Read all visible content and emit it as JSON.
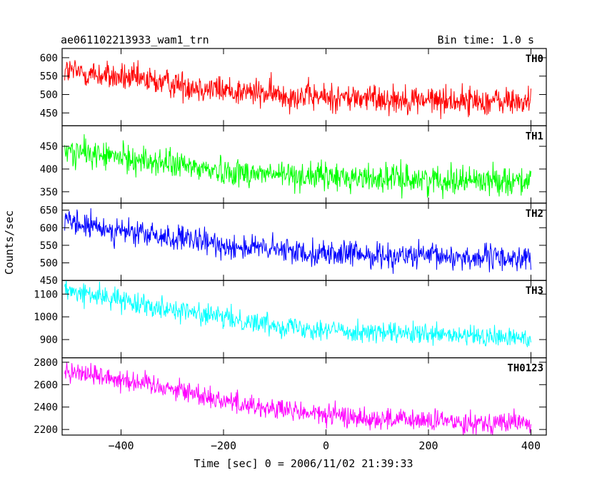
{
  "chart_data": {
    "type": "line",
    "title": "ae061102213933_wam1_trn",
    "subtitle": "Bin time: 1.0 s",
    "xlabel": "Time [sec] 0 = 2006/11/02 21:39:33",
    "ylabel": "Counts/sec",
    "xlim": [
      -515,
      430
    ],
    "x_range": [
      -510,
      400
    ],
    "xticks": [
      -400,
      -200,
      0,
      200,
      400
    ],
    "grid": false,
    "panels": [
      {
        "name": "TH0",
        "color": "#ff0000",
        "ylim": [
          415,
          625
        ],
        "yticks": [
          450,
          500,
          550,
          600
        ],
        "trend": [
          [
            -510,
            565
          ],
          [
            -400,
            545
          ],
          [
            -300,
            530
          ],
          [
            -200,
            512
          ],
          [
            -100,
            500
          ],
          [
            0,
            492
          ],
          [
            100,
            490
          ],
          [
            200,
            485
          ],
          [
            300,
            482
          ],
          [
            400,
            480
          ]
        ],
        "noise": 28
      },
      {
        "name": "TH1",
        "color": "#00ff00",
        "ylim": [
          325,
          495
        ],
        "yticks": [
          350,
          400,
          450
        ],
        "trend": [
          [
            -510,
            440
          ],
          [
            -400,
            425
          ],
          [
            -300,
            410
          ],
          [
            -200,
            395
          ],
          [
            -100,
            388
          ],
          [
            0,
            383
          ],
          [
            100,
            380
          ],
          [
            200,
            377
          ],
          [
            300,
            376
          ],
          [
            400,
            375
          ]
        ],
        "noise": 22
      },
      {
        "name": "TH2",
        "color": "#0000ff",
        "ylim": [
          450,
          670
        ],
        "yticks": [
          450,
          500,
          550,
          600,
          650
        ],
        "trend": [
          [
            -510,
            615
          ],
          [
            -400,
            590
          ],
          [
            -300,
            570
          ],
          [
            -200,
            550
          ],
          [
            -100,
            537
          ],
          [
            0,
            527
          ],
          [
            100,
            522
          ],
          [
            200,
            518
          ],
          [
            300,
            515
          ],
          [
            400,
            512
          ]
        ],
        "noise": 26
      },
      {
        "name": "TH3",
        "color": "#00ffff",
        "ylim": [
          820,
          1160
        ],
        "yticks": [
          900,
          1000,
          1100
        ],
        "trend": [
          [
            -510,
            1115
          ],
          [
            -400,
            1075
          ],
          [
            -300,
            1035
          ],
          [
            -200,
            995
          ],
          [
            -100,
            965
          ],
          [
            0,
            945
          ],
          [
            100,
            930
          ],
          [
            200,
            920
          ],
          [
            300,
            912
          ],
          [
            400,
            905
          ]
        ],
        "noise": 33
      },
      {
        "name": "TH0123",
        "color": "#ff00ff",
        "ylim": [
          2150,
          2840
        ],
        "yticks": [
          2200,
          2400,
          2600,
          2800
        ],
        "trend": [
          [
            -510,
            2730
          ],
          [
            -400,
            2650
          ],
          [
            -300,
            2570
          ],
          [
            -200,
            2460
          ],
          [
            -100,
            2380
          ],
          [
            0,
            2330
          ],
          [
            100,
            2295
          ],
          [
            200,
            2275
          ],
          [
            300,
            2265
          ],
          [
            400,
            2260
          ]
        ],
        "noise": 70
      }
    ]
  }
}
